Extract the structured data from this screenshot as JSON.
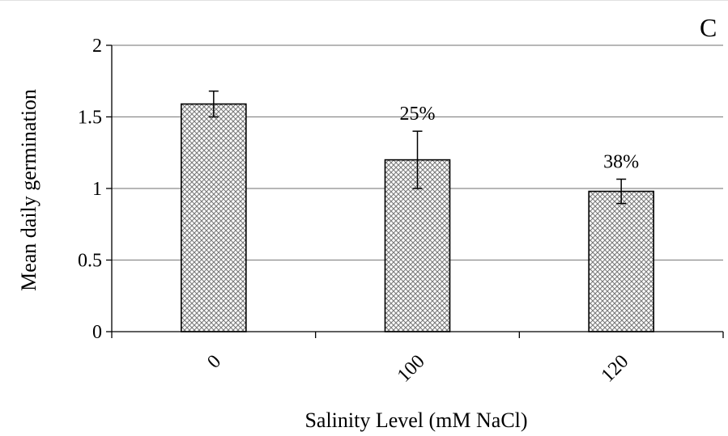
{
  "chart_data": {
    "type": "bar",
    "panel_label": "C",
    "categories": [
      "0",
      "100",
      "120"
    ],
    "values": [
      1.59,
      1.2,
      0.98
    ],
    "error": [
      0.09,
      0.2,
      0.085
    ],
    "data_labels": [
      "",
      "25%",
      "38%"
    ],
    "title": "",
    "xlabel": "Salinity Level (mM NaCl)",
    "ylabel": "Mean daily germination",
    "ylim": [
      0,
      2
    ],
    "yticks": [
      0,
      0.5,
      1,
      1.5,
      2
    ],
    "ytick_labels": [
      "0",
      "0.5",
      "1",
      "1.5",
      "2"
    ],
    "grid": "horizontal",
    "legend": "none",
    "bar_fill": "crosshatch",
    "colors": {
      "bar_stroke": "#000000",
      "grid": "#8c8c8c",
      "axis": "#000000",
      "hatch": "#7a7a7a"
    }
  }
}
